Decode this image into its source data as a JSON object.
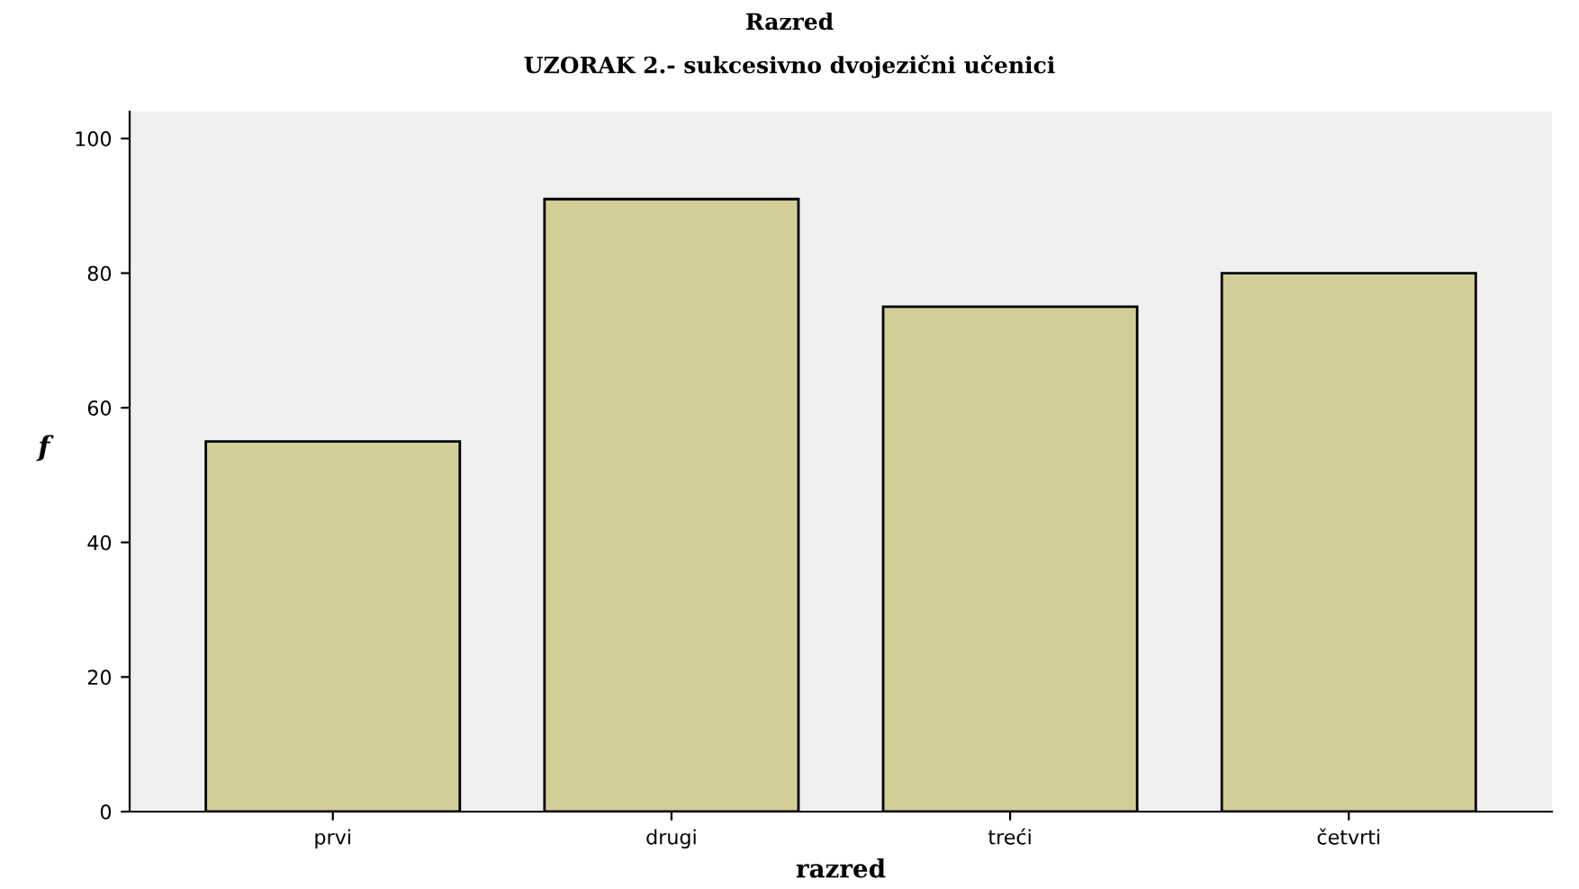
{
  "chart_data": {
    "type": "bar",
    "title": "Razred",
    "subtitle": "UZORAK 2.- sukcesivno dvojezični učenici",
    "xlabel": "razred",
    "ylabel": "f",
    "categories": [
      "prvi",
      "drugi",
      "treći",
      "četvrti"
    ],
    "values": [
      55,
      91,
      75,
      80
    ],
    "color": "#d3ce97",
    "ylim": [
      0,
      104
    ],
    "yticks": [
      0,
      20,
      40,
      60,
      80,
      100
    ],
    "grid": false
  }
}
